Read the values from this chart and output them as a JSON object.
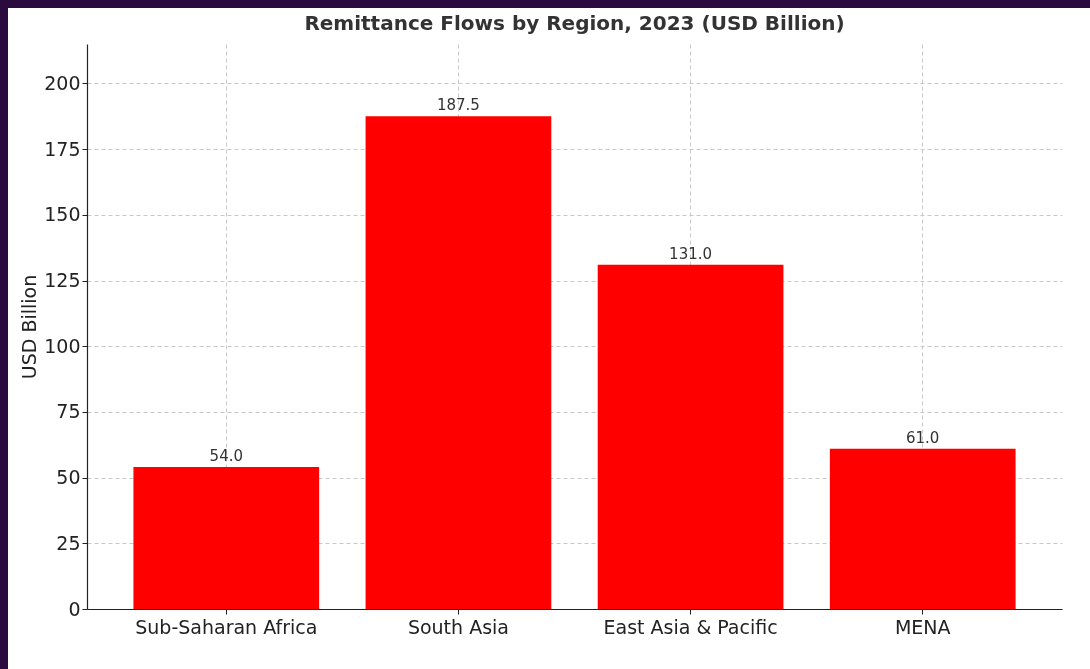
{
  "chart_data": {
    "type": "bar",
    "title": "Remittance Flows by Region, 2023 (USD Billion)",
    "ylabel": "USD Billion",
    "categories": [
      "Sub-Saharan Africa",
      "South Asia",
      "East Asia & Pacific",
      "MENA"
    ],
    "values": [
      54.0,
      187.5,
      131.0,
      61.0
    ],
    "value_labels": [
      "54.0",
      "187.5",
      "131.0",
      "61.0"
    ],
    "color": "#ff0000",
    "ylim": [
      0,
      215
    ],
    "yticks": [
      0,
      25,
      50,
      75,
      100,
      125,
      150,
      175,
      200
    ],
    "grid": true
  }
}
